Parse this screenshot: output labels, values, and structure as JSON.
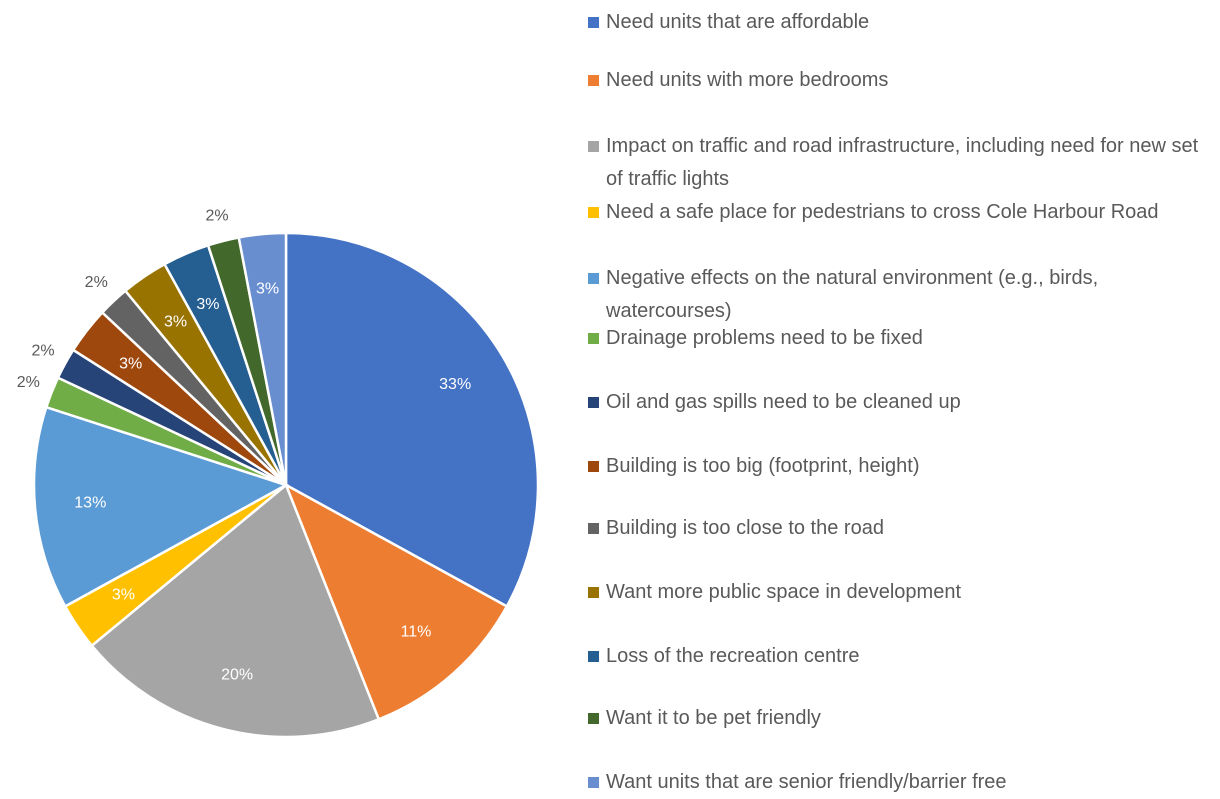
{
  "chart_data": {
    "type": "pie",
    "categories": [
      "Need units that are affordable",
      "Need units with more bedrooms",
      "Impact on traffic and road infrastructure, including need for new set of traffic lights",
      "Need a safe place for pedestrians to cross Cole Harbour Road",
      "Negative effects on the natural environment (e.g., birds, watercourses)",
      "Drainage problems need to be fixed",
      "Oil and gas spills need to be cleaned up",
      "Building is too big (footprint, height)",
      "Building is too close to the road",
      "Want more public space in development",
      "Loss of the recreation centre",
      "Want it to be pet friendly",
      "Want units that are senior friendly/barrier free"
    ],
    "values": [
      33,
      11,
      20,
      3,
      13,
      2,
      2,
      3,
      2,
      3,
      3,
      2,
      3
    ],
    "value_labels": [
      "33%",
      "11%",
      "20%",
      "3%",
      "13%",
      "2%",
      "2%",
      "3%",
      "2%",
      "3%",
      "3%",
      "2%",
      "3%"
    ],
    "colors": [
      "#4472C4",
      "#ED7D31",
      "#A5A5A5",
      "#FFC000",
      "#5B9BD5",
      "#70AD47",
      "#264478",
      "#9E480E",
      "#636363",
      "#997300",
      "#255E91",
      "#43682B",
      "#698ED0"
    ],
    "legend": "right"
  }
}
